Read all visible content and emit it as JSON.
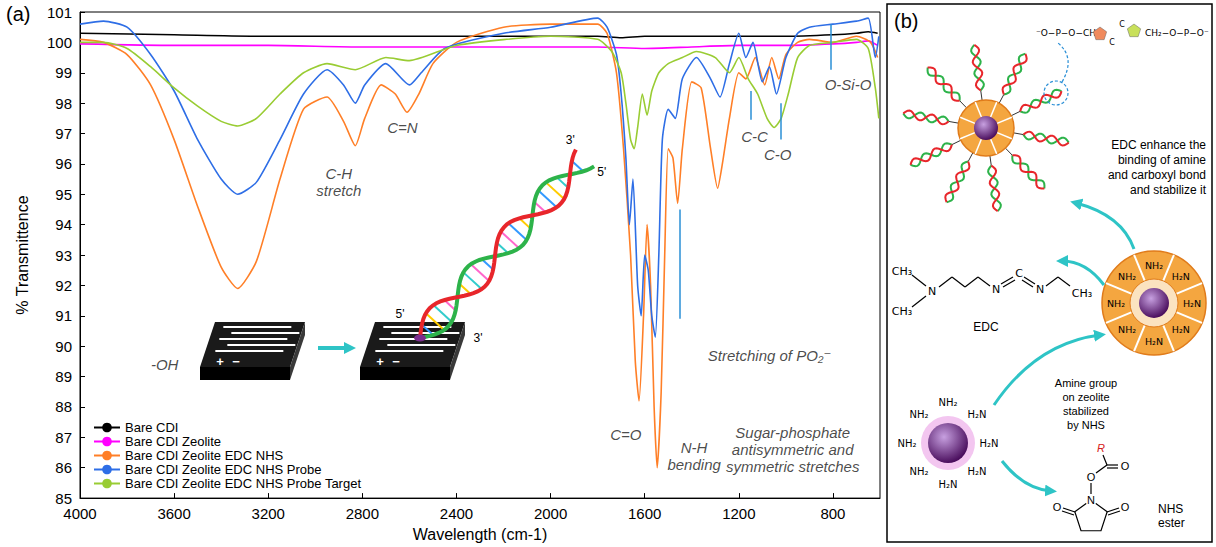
{
  "chart_data": {
    "type": "line",
    "panel_label": "(a)",
    "x_label": "Wavelength (cm-1)",
    "y_label": "% Transmittence",
    "xlim": [
      4000,
      600
    ],
    "xticks": [
      4000,
      3600,
      3200,
      2800,
      2400,
      2000,
      1600,
      1200,
      800
    ],
    "ylim": [
      85,
      101
    ],
    "yticks": [
      85,
      86,
      87,
      88,
      89,
      90,
      91,
      92,
      93,
      94,
      95,
      96,
      97,
      98,
      99,
      100,
      101
    ],
    "grid": false,
    "legend": "lower left",
    "series": [
      {
        "name": "Bare CDI",
        "color": "#000000",
        "x": [
          4000,
          3600,
          3200,
          2800,
          2400,
          2000,
          1800,
          1700,
          1600,
          1400,
          1200,
          1000,
          800,
          700,
          650,
          610
        ],
        "values": [
          100.3,
          100.25,
          100.2,
          100.2,
          100.2,
          100.2,
          100.2,
          100.15,
          100.2,
          100.2,
          100.2,
          100.2,
          100.25,
          100.3,
          100.35,
          100.3
        ]
      },
      {
        "name": "Bare CDI Zeolite",
        "color": "#ff00ff",
        "x": [
          4000,
          3600,
          3200,
          2800,
          2400,
          2000,
          1800,
          1600,
          1400,
          1200,
          1000,
          800,
          700,
          650,
          610
        ],
        "values": [
          99.95,
          99.9,
          99.9,
          99.85,
          99.85,
          99.85,
          99.85,
          99.8,
          99.85,
          99.9,
          99.9,
          99.95,
          100.0,
          100.05,
          99.9
        ]
      },
      {
        "name": "Bare CDI Zeolite EDC NHS",
        "color": "#ff7f27",
        "x": [
          4000,
          3900,
          3800,
          3700,
          3600,
          3500,
          3400,
          3330,
          3250,
          3150,
          3050,
          2950,
          2880,
          2830,
          2790,
          2720,
          2660,
          2610,
          2560,
          2500,
          2400,
          2200,
          2000,
          1800,
          1760,
          1720,
          1690,
          1660,
          1640,
          1624,
          1605,
          1590,
          1575,
          1560,
          1547,
          1530,
          1515,
          1500,
          1480,
          1460,
          1440,
          1400,
          1360,
          1320,
          1290,
          1270,
          1240,
          1200,
          1170,
          1130,
          1090,
          1060,
          1030,
          1000,
          950,
          900,
          800,
          700,
          640,
          610
        ],
        "values": [
          100.1,
          100.0,
          99.6,
          98.6,
          96.8,
          94.6,
          92.6,
          91.9,
          92.8,
          95.5,
          97.8,
          98.2,
          97.4,
          96.6,
          97.5,
          98.6,
          98.3,
          97.7,
          98.3,
          99.3,
          100.0,
          100.5,
          100.6,
          100.6,
          100.3,
          99.0,
          96.5,
          93.0,
          89.5,
          88.2,
          91.0,
          94.0,
          92.0,
          88.0,
          86.0,
          88.5,
          93.0,
          96.5,
          96.2,
          94.7,
          96.5,
          98.7,
          98.5,
          96.5,
          95.2,
          96.0,
          97.5,
          99.0,
          98.8,
          99.5,
          98.6,
          99.5,
          98.8,
          99.6,
          100.0,
          100.1,
          100.0,
          100.2,
          100.0,
          99.5
        ]
      },
      {
        "name": "Bare CDI Zeolite EDC NHS Probe",
        "color": "#2e6ee6",
        "x": [
          4000,
          3900,
          3800,
          3700,
          3600,
          3500,
          3400,
          3330,
          3250,
          3150,
          3050,
          2950,
          2880,
          2830,
          2790,
          2700,
          2600,
          2550,
          2450,
          2200,
          2000,
          1800,
          1760,
          1720,
          1700,
          1680,
          1665,
          1650,
          1630,
          1615,
          1600,
          1585,
          1570,
          1555,
          1540,
          1525,
          1500,
          1470,
          1440,
          1380,
          1320,
          1280,
          1240,
          1200,
          1170,
          1140,
          1100,
          1070,
          1040,
          1000,
          950,
          900,
          800,
          700,
          650,
          620,
          605
        ],
        "values": [
          100.6,
          100.7,
          100.5,
          99.6,
          98.4,
          96.8,
          95.5,
          95.0,
          95.4,
          96.8,
          98.3,
          99.1,
          98.6,
          98.0,
          98.6,
          99.3,
          98.6,
          99.0,
          99.8,
          100.3,
          100.5,
          100.8,
          100.5,
          99.6,
          98.3,
          96.2,
          94.0,
          95.5,
          92.0,
          91.0,
          93.0,
          92.5,
          91.0,
          90.3,
          93.0,
          96.8,
          97.8,
          97.5,
          98.8,
          99.5,
          98.8,
          98.2,
          99.3,
          100.3,
          99.5,
          100.0,
          98.7,
          99.2,
          98.3,
          99.5,
          100.3,
          100.5,
          100.6,
          100.7,
          100.8,
          99.5,
          100.2
        ]
      },
      {
        "name": "Bare CDI Zeolite EDC NHS Probe Target",
        "color": "#99cc33",
        "x": [
          4000,
          3900,
          3800,
          3700,
          3600,
          3500,
          3400,
          3330,
          3250,
          3150,
          3050,
          2950,
          2830,
          2700,
          2600,
          2400,
          2000,
          1800,
          1740,
          1700,
          1680,
          1660,
          1645,
          1630,
          1610,
          1590,
          1570,
          1540,
          1500,
          1440,
          1380,
          1300,
          1240,
          1200,
          1160,
          1120,
          1080,
          1050,
          1020,
          990,
          950,
          900,
          800,
          700,
          650,
          620,
          605
        ],
        "values": [
          100.0,
          100.0,
          99.8,
          99.2,
          98.5,
          97.9,
          97.4,
          97.25,
          97.5,
          98.3,
          99.0,
          99.3,
          99.1,
          99.5,
          99.4,
          99.9,
          100.2,
          100.1,
          99.7,
          99.0,
          98.0,
          96.8,
          96.5,
          97.2,
          98.3,
          97.6,
          98.4,
          99.0,
          99.3,
          99.5,
          99.7,
          99.5,
          99.0,
          99.5,
          98.8,
          98.3,
          97.5,
          97.2,
          97.5,
          98.3,
          99.5,
          99.9,
          100.0,
          100.1,
          99.8,
          98.5,
          97.5
        ]
      }
    ],
    "annotations": [
      {
        "lines": [
          "-OH"
        ],
        "x": 3640,
        "y": 89.4
      },
      {
        "lines": [
          "C-H",
          "stretch"
        ],
        "x": 2900,
        "y": 95.4
      },
      {
        "lines": [
          "C=N"
        ],
        "x": 2630,
        "y": 97.2
      },
      {
        "lines": [
          "C=O"
        ],
        "x": 1680,
        "y": 87.1
      },
      {
        "lines": [
          "N-H",
          "bending"
        ],
        "x": 1390,
        "y": 86.4,
        "arrow_from": [
          1450,
          94.5
        ],
        "arrow_to": [
          1450,
          90.9
        ]
      },
      {
        "lines": [
          "Stretching of PO₂⁻"
        ],
        "x": 1069,
        "y": 89.7
      },
      {
        "lines": [
          "Sugar-phosphate",
          "antisymmetric and",
          "symmetric stretches"
        ],
        "x": 971,
        "y": 86.6
      },
      {
        "lines": [
          "C-C"
        ],
        "x": 1133,
        "y": 96.9,
        "arrow_from": [
          1150,
          98.4
        ],
        "arrow_to": [
          1150,
          97.45
        ]
      },
      {
        "lines": [
          "C-O"
        ],
        "x": 1035,
        "y": 96.3,
        "arrow_from": [
          1022,
          98.0
        ],
        "arrow_to": [
          1022,
          96.8
        ]
      },
      {
        "lines": [
          "O-Si-O"
        ],
        "x": 736,
        "y": 98.6,
        "arrow_from": [
          809,
          99.1
        ],
        "arrow_to": [
          809,
          100.6
        ]
      }
    ],
    "inset": {
      "signs": [
        "+",
        "−"
      ],
      "strand_ends": [
        "5'",
        "3'",
        "3'",
        "5'"
      ]
    }
  },
  "panel_b": {
    "label": "(b)",
    "backbone": [
      "⁻O−P−O−CH₂",
      "C",
      "C",
      "CH₂−O−P−O⁻"
    ],
    "edc_note": [
      "EDC enhance the",
      "binding of amine",
      "and carboxyl bond",
      "and stabilize it"
    ],
    "edc_name": "EDC",
    "edc_atoms": [
      "CH₃",
      "N",
      "CH₃",
      "N",
      "C",
      "N",
      "CH₃"
    ],
    "amine_labels": [
      "NH₂",
      "H₂N",
      "H₂N",
      "H₂N",
      "H₂N",
      "NH₂",
      "NH₂",
      "NH₂"
    ],
    "amine_note": [
      "Amine group",
      "on zeolite",
      "stabilized",
      "by NHS"
    ],
    "nhs_atoms": [
      "N",
      "O",
      "O",
      "O",
      "O",
      "R"
    ],
    "nhs_name": [
      "NHS",
      "ester"
    ]
  }
}
